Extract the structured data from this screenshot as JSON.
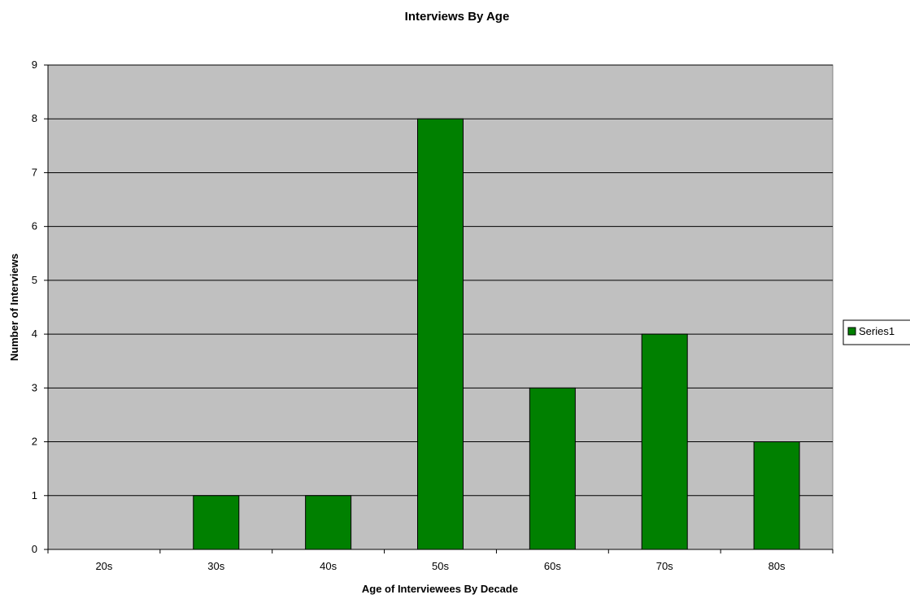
{
  "chart_data": {
    "type": "bar",
    "title": "Interviews By Age",
    "xlabel": "Age of Interviewees By Decade",
    "ylabel": "Number of Interviews",
    "categories": [
      "20s",
      "30s",
      "40s",
      "50s",
      "60s",
      "70s",
      "80s"
    ],
    "series": [
      {
        "name": "Series1",
        "values": [
          0,
          1,
          1,
          8,
          3,
          4,
          2
        ],
        "color": "#008000"
      }
    ],
    "ylim": [
      0,
      9
    ],
    "yticks": [
      "0",
      "1",
      "2",
      "3",
      "4",
      "5",
      "6",
      "7",
      "8",
      "9"
    ],
    "grid": true,
    "legend_position": "right",
    "plot_background": "#c0c0c0",
    "gridline_color": "#000000"
  }
}
